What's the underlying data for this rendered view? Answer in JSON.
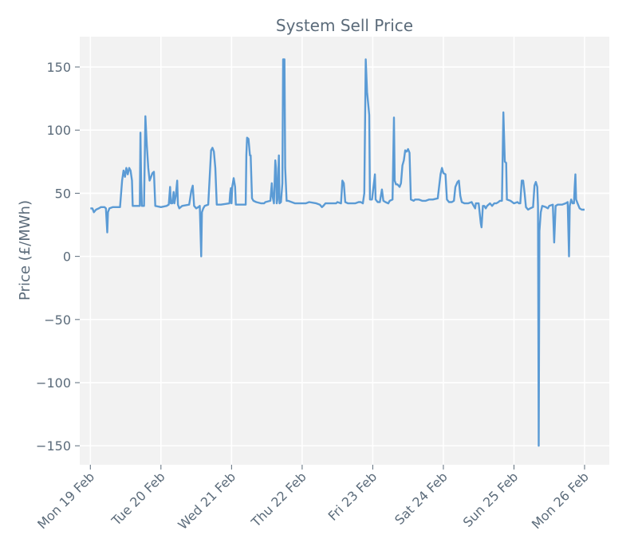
{
  "chart_data": {
    "type": "line",
    "title": "System Sell Price",
    "xlabel": "",
    "ylabel": "Price (£/MWh)",
    "ylim": [
      -165,
      174
    ],
    "xlim": [
      -0.15,
      7.35
    ],
    "grid": true,
    "x_ticks": [
      {
        "value": 0,
        "label": "Mon 19 Feb"
      },
      {
        "value": 1,
        "label": "Tue 20 Feb"
      },
      {
        "value": 2,
        "label": "Wed 21 Feb"
      },
      {
        "value": 3,
        "label": "Thu 22 Feb"
      },
      {
        "value": 4,
        "label": "Fri 23 Feb"
      },
      {
        "value": 5,
        "label": "Sat 24 Feb"
      },
      {
        "value": 6,
        "label": "Sun 25 Feb"
      },
      {
        "value": 7,
        "label": "Mon 26 Feb"
      }
    ],
    "y_ticks": [
      {
        "value": 150,
        "label": "150"
      },
      {
        "value": 100,
        "label": "100"
      },
      {
        "value": 50,
        "label": "50"
      },
      {
        "value": 0,
        "label": "0"
      },
      {
        "value": -50,
        "label": "−50"
      },
      {
        "value": -100,
        "label": "−100"
      },
      {
        "value": -150,
        "label": "−150"
      }
    ],
    "series": [
      {
        "name": "System Sell Price",
        "color": "#5b9bd5",
        "points": [
          [
            0.0,
            38
          ],
          [
            0.03,
            38
          ],
          [
            0.05,
            35
          ],
          [
            0.08,
            37
          ],
          [
            0.12,
            38
          ],
          [
            0.15,
            39
          ],
          [
            0.2,
            39
          ],
          [
            0.22,
            38
          ],
          [
            0.24,
            19
          ],
          [
            0.25,
            35
          ],
          [
            0.27,
            38
          ],
          [
            0.32,
            39
          ],
          [
            0.42,
            39
          ],
          [
            0.45,
            60
          ],
          [
            0.47,
            68
          ],
          [
            0.49,
            63
          ],
          [
            0.51,
            70
          ],
          [
            0.53,
            65
          ],
          [
            0.55,
            70
          ],
          [
            0.57,
            68
          ],
          [
            0.59,
            60
          ],
          [
            0.6,
            40
          ],
          [
            0.7,
            40
          ],
          [
            0.71,
            98
          ],
          [
            0.72,
            60
          ],
          [
            0.73,
            40
          ],
          [
            0.76,
            40
          ],
          [
            0.78,
            111
          ],
          [
            0.8,
            88
          ],
          [
            0.82,
            70
          ],
          [
            0.84,
            60
          ],
          [
            0.86,
            63
          ],
          [
            0.88,
            66
          ],
          [
            0.9,
            67
          ],
          [
            0.92,
            40
          ],
          [
            1.0,
            39
          ],
          [
            1.08,
            40
          ],
          [
            1.11,
            41
          ],
          [
            1.13,
            55
          ],
          [
            1.14,
            42
          ],
          [
            1.16,
            42
          ],
          [
            1.18,
            51
          ],
          [
            1.19,
            42
          ],
          [
            1.21,
            48
          ],
          [
            1.23,
            60
          ],
          [
            1.24,
            41
          ],
          [
            1.26,
            38
          ],
          [
            1.3,
            40
          ],
          [
            1.4,
            41
          ],
          [
            1.43,
            52
          ],
          [
            1.45,
            56
          ],
          [
            1.47,
            40
          ],
          [
            1.5,
            38
          ],
          [
            1.53,
            39
          ],
          [
            1.55,
            40
          ],
          [
            1.56,
            20
          ],
          [
            1.57,
            0
          ],
          [
            1.58,
            35
          ],
          [
            1.6,
            38
          ],
          [
            1.62,
            40
          ],
          [
            1.67,
            41
          ],
          [
            1.71,
            84
          ],
          [
            1.73,
            86
          ],
          [
            1.75,
            83
          ],
          [
            1.77,
            70
          ],
          [
            1.79,
            41
          ],
          [
            1.85,
            41
          ],
          [
            1.97,
            42
          ],
          [
            1.98,
            50
          ],
          [
            1.99,
            54
          ],
          [
            2.0,
            42
          ],
          [
            2.01,
            55
          ],
          [
            2.03,
            62
          ],
          [
            2.05,
            55
          ],
          [
            2.06,
            41
          ],
          [
            2.15,
            41
          ],
          [
            2.2,
            41
          ],
          [
            2.21,
            80
          ],
          [
            2.22,
            94
          ],
          [
            2.24,
            93
          ],
          [
            2.26,
            80
          ],
          [
            2.27,
            80
          ],
          [
            2.29,
            46
          ],
          [
            2.31,
            44
          ],
          [
            2.35,
            43
          ],
          [
            2.42,
            42
          ],
          [
            2.46,
            42
          ],
          [
            2.48,
            43
          ],
          [
            2.55,
            44
          ],
          [
            2.57,
            58
          ],
          [
            2.58,
            48
          ],
          [
            2.6,
            42
          ],
          [
            2.62,
            76
          ],
          [
            2.63,
            70
          ],
          [
            2.64,
            42
          ],
          [
            2.65,
            45
          ],
          [
            2.67,
            80
          ],
          [
            2.68,
            42
          ],
          [
            2.7,
            43
          ],
          [
            2.72,
            58
          ],
          [
            2.73,
            156
          ],
          [
            2.75,
            156
          ],
          [
            2.76,
            70
          ],
          [
            2.78,
            44
          ],
          [
            2.8,
            44
          ],
          [
            2.9,
            42
          ],
          [
            2.97,
            42
          ],
          [
            3.05,
            42
          ],
          [
            3.1,
            43
          ],
          [
            3.2,
            42
          ],
          [
            3.25,
            41
          ],
          [
            3.28,
            39
          ],
          [
            3.3,
            40
          ],
          [
            3.33,
            42
          ],
          [
            3.4,
            42
          ],
          [
            3.45,
            42
          ],
          [
            3.48,
            42
          ],
          [
            3.5,
            43
          ],
          [
            3.55,
            42
          ],
          [
            3.57,
            60
          ],
          [
            3.59,
            58
          ],
          [
            3.61,
            43
          ],
          [
            3.65,
            42
          ],
          [
            3.75,
            42
          ],
          [
            3.8,
            43
          ],
          [
            3.83,
            43
          ],
          [
            3.86,
            42
          ],
          [
            3.88,
            50
          ],
          [
            3.9,
            156
          ],
          [
            3.92,
            130
          ],
          [
            3.95,
            112
          ],
          [
            3.96,
            45
          ],
          [
            3.99,
            45
          ],
          [
            4.03,
            65
          ],
          [
            4.04,
            45
          ],
          [
            4.07,
            43
          ],
          [
            4.1,
            43
          ],
          [
            4.13,
            53
          ],
          [
            4.15,
            44
          ],
          [
            4.18,
            43
          ],
          [
            4.22,
            42
          ],
          [
            4.24,
            44
          ],
          [
            4.28,
            45
          ],
          [
            4.3,
            110
          ],
          [
            4.31,
            60
          ],
          [
            4.33,
            57
          ],
          [
            4.35,
            57
          ],
          [
            4.38,
            55
          ],
          [
            4.4,
            58
          ],
          [
            4.42,
            72
          ],
          [
            4.44,
            76
          ],
          [
            4.46,
            84
          ],
          [
            4.48,
            83
          ],
          [
            4.5,
            85
          ],
          [
            4.52,
            82
          ],
          [
            4.54,
            45
          ],
          [
            4.58,
            44
          ],
          [
            4.6,
            45
          ],
          [
            4.65,
            45
          ],
          [
            4.7,
            44
          ],
          [
            4.75,
            44
          ],
          [
            4.8,
            45
          ],
          [
            4.85,
            45
          ],
          [
            4.92,
            46
          ],
          [
            4.96,
            65
          ],
          [
            4.98,
            70
          ],
          [
            5.0,
            66
          ],
          [
            5.03,
            65
          ],
          [
            5.05,
            45
          ],
          [
            5.08,
            43
          ],
          [
            5.12,
            43
          ],
          [
            5.15,
            44
          ],
          [
            5.17,
            55
          ],
          [
            5.2,
            59
          ],
          [
            5.22,
            60
          ],
          [
            5.24,
            48
          ],
          [
            5.26,
            43
          ],
          [
            5.3,
            42
          ],
          [
            5.35,
            42
          ],
          [
            5.4,
            43
          ],
          [
            5.43,
            40
          ],
          [
            5.45,
            38
          ],
          [
            5.46,
            42
          ],
          [
            5.48,
            42
          ],
          [
            5.5,
            42
          ],
          [
            5.53,
            26
          ],
          [
            5.54,
            23
          ],
          [
            5.56,
            40
          ],
          [
            5.58,
            40
          ],
          [
            5.6,
            38
          ],
          [
            5.62,
            40
          ],
          [
            5.66,
            42
          ],
          [
            5.69,
            40
          ],
          [
            5.72,
            42
          ],
          [
            5.75,
            42
          ],
          [
            5.78,
            43
          ],
          [
            5.8,
            44
          ],
          [
            5.83,
            44
          ],
          [
            5.85,
            114
          ],
          [
            5.87,
            75
          ],
          [
            5.89,
            74
          ],
          [
            5.9,
            45
          ],
          [
            5.95,
            44
          ],
          [
            6.0,
            42
          ],
          [
            6.05,
            43
          ],
          [
            6.07,
            42
          ],
          [
            6.09,
            42
          ],
          [
            6.11,
            60
          ],
          [
            6.13,
            60
          ],
          [
            6.15,
            50
          ],
          [
            6.17,
            39
          ],
          [
            6.2,
            37
          ],
          [
            6.23,
            38
          ],
          [
            6.27,
            39
          ],
          [
            6.29,
            56
          ],
          [
            6.31,
            59
          ],
          [
            6.33,
            55
          ],
          [
            6.34,
            40
          ],
          [
            6.35,
            -150
          ],
          [
            6.36,
            20
          ],
          [
            6.38,
            35
          ],
          [
            6.4,
            40
          ],
          [
            6.45,
            39
          ],
          [
            6.48,
            38
          ],
          [
            6.5,
            40
          ],
          [
            6.55,
            41
          ],
          [
            6.57,
            11
          ],
          [
            6.59,
            40
          ],
          [
            6.62,
            41
          ],
          [
            6.68,
            41
          ],
          [
            6.73,
            42
          ],
          [
            6.76,
            43
          ],
          [
            6.78,
            0
          ],
          [
            6.79,
            40
          ],
          [
            6.81,
            45
          ],
          [
            6.83,
            42
          ],
          [
            6.85,
            42
          ],
          [
            6.86,
            55
          ],
          [
            6.87,
            65
          ],
          [
            6.88,
            45
          ],
          [
            6.9,
            42
          ],
          [
            6.93,
            38
          ],
          [
            6.96,
            37
          ],
          [
            7.0,
            37
          ]
        ]
      }
    ]
  }
}
